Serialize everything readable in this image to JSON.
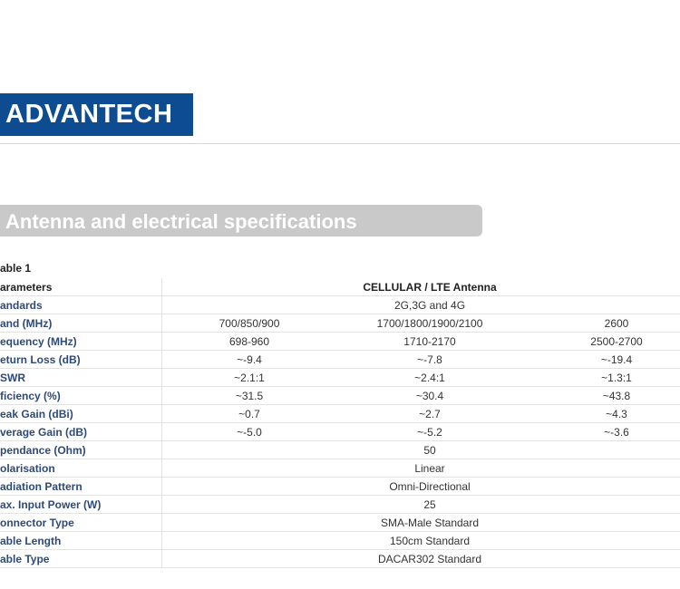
{
  "header": {
    "logo": "ADVANTECH"
  },
  "section": {
    "title": "Antenna and electrical specifications"
  },
  "table": {
    "caption": "able 1",
    "header": {
      "label": "arameters",
      "value": "CELLULAR / LTE Antenna"
    },
    "rows": [
      {
        "label": "andards",
        "values": [
          "2G,3G and 4G"
        ]
      },
      {
        "label": "and (MHz)",
        "values": [
          "700/850/900",
          "1700/1800/1900/2100",
          "2600"
        ]
      },
      {
        "label": "equency (MHz)",
        "values": [
          "698-960",
          "1710-2170",
          "2500-2700"
        ]
      },
      {
        "label": "eturn Loss (dB)",
        "values": [
          "~-9.4",
          "~-7.8",
          "~-19.4"
        ]
      },
      {
        "label": "SWR",
        "values": [
          "~2.1:1",
          "~2.4:1",
          "~1.3:1"
        ]
      },
      {
        "label": "ficiency (%)",
        "values": [
          "~31.5",
          "~30.4",
          "~43.8"
        ]
      },
      {
        "label": "eak Gain (dBi)",
        "values": [
          "~0.7",
          "~2.7",
          "~4.3"
        ]
      },
      {
        "label": "verage Gain (dB)",
        "values": [
          "~-5.0",
          "~-5.2",
          "~-3.6"
        ]
      },
      {
        "label": "pendance (Ohm)",
        "values": [
          "50"
        ]
      },
      {
        "label": "olarisation",
        "values": [
          "Linear"
        ]
      },
      {
        "label": "adiation Pattern",
        "values": [
          "Omni-Directional"
        ]
      },
      {
        "label": "ax. Input Power (W)",
        "values": [
          "25"
        ]
      },
      {
        "label": "onnector Type",
        "values": [
          "SMA-Male Standard"
        ]
      },
      {
        "label": "able Length",
        "values": [
          "150cm Standard"
        ]
      },
      {
        "label": "able Type",
        "values": [
          "DACAR302 Standard"
        ]
      }
    ]
  }
}
